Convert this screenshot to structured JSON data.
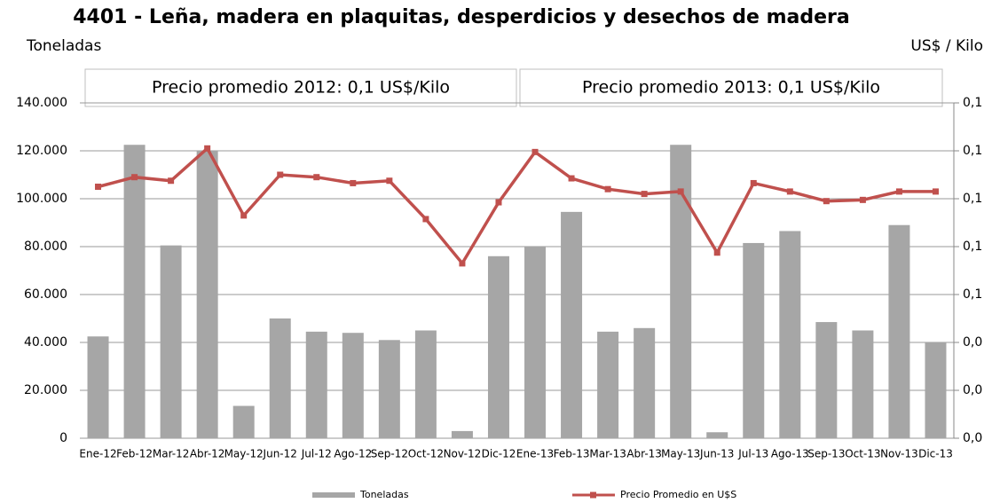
{
  "chart_data": {
    "type": "bar_line",
    "title": "4401 - Leña, madera en plaquitas, desperdicios y desechos de madera",
    "y_label": "Toneladas",
    "y2_label": "US$ / Kilo",
    "annotations": [
      "Precio promedio 2012: 0,1 US$/Kilo",
      "Precio promedio 2013: 0,1 US$/Kilo"
    ],
    "categories": [
      "Ene-12",
      "Feb-12",
      "Mar-12",
      "Abr-12",
      "May-12",
      "Jun-12",
      "Jul-12",
      "Ago-12",
      "Sep-12",
      "Oct-12",
      "Nov-12",
      "Dic-12",
      "Ene-13",
      "Feb-13",
      "Mar-13",
      "Abr-13",
      "May-13",
      "Jun-13",
      "Jul-13",
      "Ago-13",
      "Sep-13",
      "Oct-13",
      "Nov-13",
      "Dic-13"
    ],
    "series": [
      {
        "name": "Toneladas",
        "type": "bar",
        "color": "#a6a6a6",
        "values": [
          42500,
          122500,
          80500,
          120000,
          13500,
          50000,
          44500,
          44000,
          41000,
          45000,
          3000,
          76000,
          80000,
          94500,
          44500,
          46000,
          122500,
          2500,
          81500,
          86500,
          48500,
          45000,
          89000,
          40000
        ]
      },
      {
        "name": "Precio Promedio en  U$S",
        "type": "line",
        "axis": "y2",
        "color": "#c0504d",
        "values": [
          0.105,
          0.109,
          0.1075,
          0.121,
          0.093,
          0.11,
          0.109,
          0.1065,
          0.1075,
          0.0915,
          0.073,
          0.0985,
          0.1195,
          0.1085,
          0.104,
          0.102,
          0.103,
          0.0775,
          0.1065,
          0.103,
          0.099,
          0.0995,
          0.103,
          0.103
        ]
      }
    ],
    "ylim": [
      0,
      140000
    ],
    "yticks": [
      0,
      {
        "value": 20000,
        "label": "20.000"
      },
      {
        "value": 40000,
        "label": "40.000"
      },
      {
        "value": 60000,
        "label": "60.000"
      },
      {
        "value": 80000,
        "label": "80.000"
      },
      {
        "value": 100000,
        "label": "100.000"
      },
      {
        "value": 120000,
        "label": "120.000"
      },
      {
        "value": 140000,
        "label": "140.000"
      }
    ],
    "y2lim": [
      0,
      0.14
    ],
    "y2ticks": [
      {
        "value": 0,
        "label": "0,0"
      },
      {
        "value": 0.02,
        "label": "0,0"
      },
      {
        "value": 0.04,
        "label": "0,0"
      },
      {
        "value": 0.06,
        "label": "0,1"
      },
      {
        "value": 0.08,
        "label": "0,1"
      },
      {
        "value": 0.1,
        "label": "0,1"
      },
      {
        "value": 0.12,
        "label": "0,1"
      },
      {
        "value": 0.14,
        "label": "0,1"
      }
    ],
    "grid": true,
    "legend": "bottom"
  }
}
